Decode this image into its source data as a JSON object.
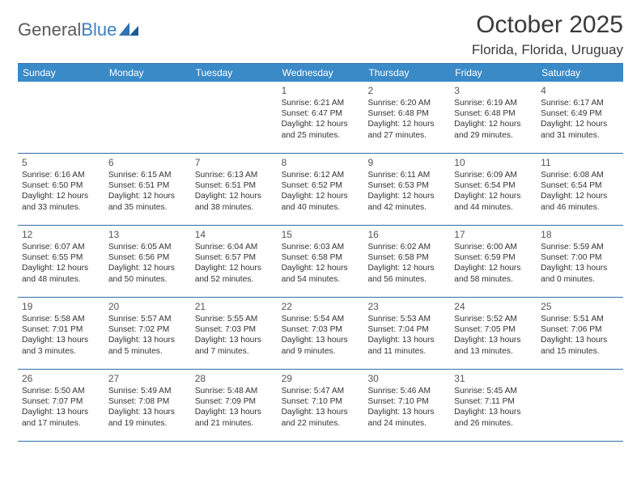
{
  "brand": {
    "text_general": "General",
    "text_blue": "Blue",
    "logo_fill": "#2f74b5"
  },
  "header": {
    "title": "October 2025",
    "location": "Florida, Florida, Uruguay"
  },
  "colors": {
    "header_bg": "#3a8ac8",
    "rule": "#2f6fa8"
  },
  "day_names": [
    "Sunday",
    "Monday",
    "Tuesday",
    "Wednesday",
    "Thursday",
    "Friday",
    "Saturday"
  ],
  "weeks": [
    [
      null,
      null,
      null,
      {
        "n": "1",
        "sr": "Sunrise: 6:21 AM",
        "ss": "Sunset: 6:47 PM",
        "d1": "Daylight: 12 hours",
        "d2": "and 25 minutes."
      },
      {
        "n": "2",
        "sr": "Sunrise: 6:20 AM",
        "ss": "Sunset: 6:48 PM",
        "d1": "Daylight: 12 hours",
        "d2": "and 27 minutes."
      },
      {
        "n": "3",
        "sr": "Sunrise: 6:19 AM",
        "ss": "Sunset: 6:48 PM",
        "d1": "Daylight: 12 hours",
        "d2": "and 29 minutes."
      },
      {
        "n": "4",
        "sr": "Sunrise: 6:17 AM",
        "ss": "Sunset: 6:49 PM",
        "d1": "Daylight: 12 hours",
        "d2": "and 31 minutes."
      }
    ],
    [
      {
        "n": "5",
        "sr": "Sunrise: 6:16 AM",
        "ss": "Sunset: 6:50 PM",
        "d1": "Daylight: 12 hours",
        "d2": "and 33 minutes."
      },
      {
        "n": "6",
        "sr": "Sunrise: 6:15 AM",
        "ss": "Sunset: 6:51 PM",
        "d1": "Daylight: 12 hours",
        "d2": "and 35 minutes."
      },
      {
        "n": "7",
        "sr": "Sunrise: 6:13 AM",
        "ss": "Sunset: 6:51 PM",
        "d1": "Daylight: 12 hours",
        "d2": "and 38 minutes."
      },
      {
        "n": "8",
        "sr": "Sunrise: 6:12 AM",
        "ss": "Sunset: 6:52 PM",
        "d1": "Daylight: 12 hours",
        "d2": "and 40 minutes."
      },
      {
        "n": "9",
        "sr": "Sunrise: 6:11 AM",
        "ss": "Sunset: 6:53 PM",
        "d1": "Daylight: 12 hours",
        "d2": "and 42 minutes."
      },
      {
        "n": "10",
        "sr": "Sunrise: 6:09 AM",
        "ss": "Sunset: 6:54 PM",
        "d1": "Daylight: 12 hours",
        "d2": "and 44 minutes."
      },
      {
        "n": "11",
        "sr": "Sunrise: 6:08 AM",
        "ss": "Sunset: 6:54 PM",
        "d1": "Daylight: 12 hours",
        "d2": "and 46 minutes."
      }
    ],
    [
      {
        "n": "12",
        "sr": "Sunrise: 6:07 AM",
        "ss": "Sunset: 6:55 PM",
        "d1": "Daylight: 12 hours",
        "d2": "and 48 minutes."
      },
      {
        "n": "13",
        "sr": "Sunrise: 6:05 AM",
        "ss": "Sunset: 6:56 PM",
        "d1": "Daylight: 12 hours",
        "d2": "and 50 minutes."
      },
      {
        "n": "14",
        "sr": "Sunrise: 6:04 AM",
        "ss": "Sunset: 6:57 PM",
        "d1": "Daylight: 12 hours",
        "d2": "and 52 minutes."
      },
      {
        "n": "15",
        "sr": "Sunrise: 6:03 AM",
        "ss": "Sunset: 6:58 PM",
        "d1": "Daylight: 12 hours",
        "d2": "and 54 minutes."
      },
      {
        "n": "16",
        "sr": "Sunrise: 6:02 AM",
        "ss": "Sunset: 6:58 PM",
        "d1": "Daylight: 12 hours",
        "d2": "and 56 minutes."
      },
      {
        "n": "17",
        "sr": "Sunrise: 6:00 AM",
        "ss": "Sunset: 6:59 PM",
        "d1": "Daylight: 12 hours",
        "d2": "and 58 minutes."
      },
      {
        "n": "18",
        "sr": "Sunrise: 5:59 AM",
        "ss": "Sunset: 7:00 PM",
        "d1": "Daylight: 13 hours",
        "d2": "and 0 minutes."
      }
    ],
    [
      {
        "n": "19",
        "sr": "Sunrise: 5:58 AM",
        "ss": "Sunset: 7:01 PM",
        "d1": "Daylight: 13 hours",
        "d2": "and 3 minutes."
      },
      {
        "n": "20",
        "sr": "Sunrise: 5:57 AM",
        "ss": "Sunset: 7:02 PM",
        "d1": "Daylight: 13 hours",
        "d2": "and 5 minutes."
      },
      {
        "n": "21",
        "sr": "Sunrise: 5:55 AM",
        "ss": "Sunset: 7:03 PM",
        "d1": "Daylight: 13 hours",
        "d2": "and 7 minutes."
      },
      {
        "n": "22",
        "sr": "Sunrise: 5:54 AM",
        "ss": "Sunset: 7:03 PM",
        "d1": "Daylight: 13 hours",
        "d2": "and 9 minutes."
      },
      {
        "n": "23",
        "sr": "Sunrise: 5:53 AM",
        "ss": "Sunset: 7:04 PM",
        "d1": "Daylight: 13 hours",
        "d2": "and 11 minutes."
      },
      {
        "n": "24",
        "sr": "Sunrise: 5:52 AM",
        "ss": "Sunset: 7:05 PM",
        "d1": "Daylight: 13 hours",
        "d2": "and 13 minutes."
      },
      {
        "n": "25",
        "sr": "Sunrise: 5:51 AM",
        "ss": "Sunset: 7:06 PM",
        "d1": "Daylight: 13 hours",
        "d2": "and 15 minutes."
      }
    ],
    [
      {
        "n": "26",
        "sr": "Sunrise: 5:50 AM",
        "ss": "Sunset: 7:07 PM",
        "d1": "Daylight: 13 hours",
        "d2": "and 17 minutes."
      },
      {
        "n": "27",
        "sr": "Sunrise: 5:49 AM",
        "ss": "Sunset: 7:08 PM",
        "d1": "Daylight: 13 hours",
        "d2": "and 19 minutes."
      },
      {
        "n": "28",
        "sr": "Sunrise: 5:48 AM",
        "ss": "Sunset: 7:09 PM",
        "d1": "Daylight: 13 hours",
        "d2": "and 21 minutes."
      },
      {
        "n": "29",
        "sr": "Sunrise: 5:47 AM",
        "ss": "Sunset: 7:10 PM",
        "d1": "Daylight: 13 hours",
        "d2": "and 22 minutes."
      },
      {
        "n": "30",
        "sr": "Sunrise: 5:46 AM",
        "ss": "Sunset: 7:10 PM",
        "d1": "Daylight: 13 hours",
        "d2": "and 24 minutes."
      },
      {
        "n": "31",
        "sr": "Sunrise: 5:45 AM",
        "ss": "Sunset: 7:11 PM",
        "d1": "Daylight: 13 hours",
        "d2": "and 26 minutes."
      },
      null
    ]
  ]
}
